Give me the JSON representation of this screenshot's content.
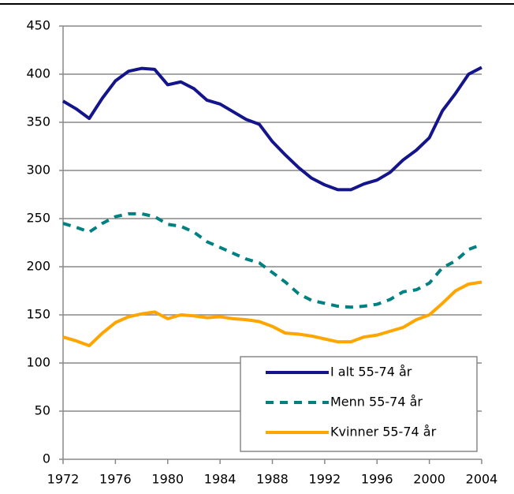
{
  "chart_data": {
    "type": "line",
    "x": [
      1972,
      1973,
      1974,
      1975,
      1976,
      1977,
      1978,
      1979,
      1980,
      1981,
      1982,
      1983,
      1984,
      1985,
      1986,
      1987,
      1988,
      1989,
      1990,
      1991,
      1992,
      1993,
      1994,
      1995,
      1996,
      1997,
      1998,
      1999,
      2000,
      2001,
      2002,
      2003,
      2004
    ],
    "series": [
      {
        "name": "I alt 55-74 år",
        "color": "#14148c",
        "dash": false,
        "values": [
          372,
          364,
          354,
          375,
          393,
          403,
          406,
          405,
          389,
          392,
          385,
          373,
          369,
          361,
          353,
          348,
          330,
          316,
          303,
          292,
          285,
          280,
          280,
          286,
          290,
          298,
          311,
          321,
          334,
          362,
          380,
          400,
          407
        ]
      },
      {
        "name": "Menn 55-74 år",
        "color": "#008080",
        "dash": true,
        "values": [
          245,
          241,
          236,
          245,
          252,
          255,
          255,
          252,
          244,
          242,
          236,
          226,
          220,
          214,
          208,
          204,
          194,
          184,
          172,
          165,
          162,
          159,
          158,
          159,
          161,
          166,
          174,
          176,
          183,
          199,
          206,
          218,
          223
        ]
      },
      {
        "name": "Kvinner 55-74 år",
        "color": "#ffa500",
        "dash": false,
        "values": [
          127,
          123,
          118,
          131,
          142,
          148,
          151,
          153,
          146,
          150,
          149,
          147,
          148,
          146,
          145,
          143,
          138,
          131,
          130,
          128,
          125,
          122,
          122,
          127,
          129,
          133,
          137,
          145,
          150,
          162,
          175,
          182,
          184
        ]
      }
    ],
    "xlim": [
      1972,
      2004
    ],
    "xticks": [
      1972,
      1976,
      1980,
      1984,
      1988,
      1992,
      1996,
      2000,
      2004
    ],
    "ylim": [
      0,
      450
    ],
    "yticks": [
      0,
      50,
      100,
      150,
      200,
      250,
      300,
      350,
      400,
      450
    ],
    "grid": true,
    "legend": "lower-right"
  }
}
